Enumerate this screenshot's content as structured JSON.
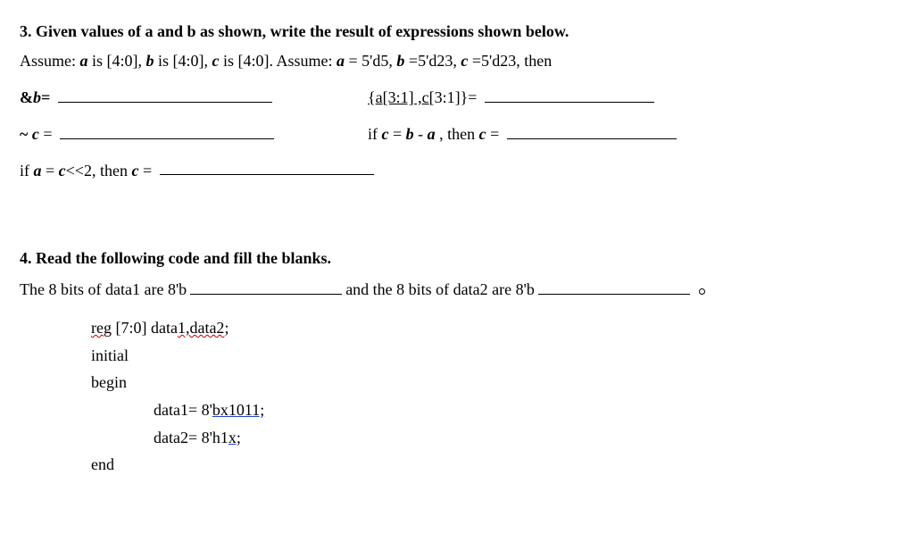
{
  "q3": {
    "title": "3. Given values of a and b as shown, write the result of expressions shown below.",
    "assume_pre": "Assume: ",
    "a_decl_a": "a",
    "a_decl_suffix": " is [4:0], ",
    "b_decl_b": "b",
    "b_decl_suffix": " is [4:0], ",
    "c_decl_c": "c",
    "c_decl_suffix": " is [4:0]. Assume: ",
    "a_eq": "a",
    "a_val": " = 5'd5, ",
    "b_eq": "b",
    "b_val": " =5'd23, ",
    "c_eq": "c",
    "c_val": " =5'd23, then",
    "and_b_lhs_amp": "&",
    "and_b_lhs_b": "b",
    "and_b_lhs_eq": "=",
    "concat_pre": "{",
    "concat_a": "a",
    "concat_mida": "[3:1] ,",
    "concat_c": "c",
    "concat_midc": "[3:1]}=",
    "not_c_tilde": "~ ",
    "not_c_c": "c",
    "not_c_eq": " =",
    "sub_pre": "if ",
    "sub_c": "c",
    "sub_mid1": " = ",
    "sub_b": "b",
    "sub_mid2": " - ",
    "sub_a": "a",
    "sub_mid3": "  ,   then ",
    "sub_c2": "c",
    "sub_eq": " =",
    "shift_pre": "if ",
    "shift_a": "a",
    "shift_mid1": " = ",
    "shift_c": "c",
    "shift_mid2": "<<2, then ",
    "shift_c2": "c",
    "shift_eq": " ="
  },
  "q4": {
    "title": "4. Read the following code and fill the blanks.",
    "sent_pre": "The 8 bits of data1 are 8'b",
    "sent_mid": "and the 8 bits of data2 are 8'b",
    "code": {
      "reg_pre": "reg",
      "reg_mid": " [7:0] data",
      "reg_u": "1,data2",
      "reg_end": ";",
      "initial": "initial",
      "begin": "begin",
      "d1_pre": "data1= 8'",
      "d1_u": "bx1011;",
      "d2_pre": "data2= 8'h1",
      "d2_u": "x;",
      "end": "end"
    }
  }
}
